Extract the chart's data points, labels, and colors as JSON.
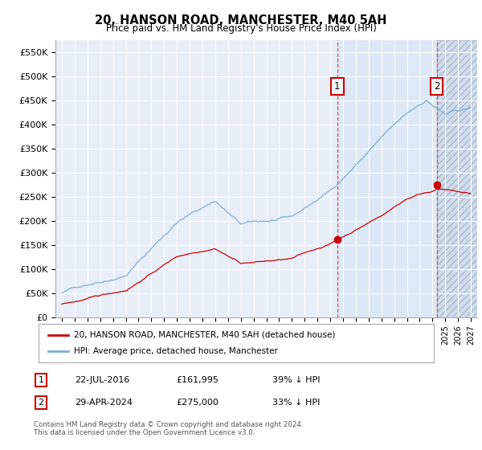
{
  "title": "20, HANSON ROAD, MANCHESTER, M40 5AH",
  "subtitle": "Price paid vs. HM Land Registry's House Price Index (HPI)",
  "hpi_color": "#7bafd4",
  "price_color": "#cc0000",
  "marker1_x": 2016.55,
  "marker2_x": 2024.33,
  "marker1_label": "1",
  "marker2_label": "2",
  "marker1_price": 161995,
  "marker2_price": 275000,
  "marker1_date": "22-JUL-2016",
  "marker2_date": "29-APR-2024",
  "marker1_hpi_pct": "39% ↓ HPI",
  "marker2_hpi_pct": "33% ↓ HPI",
  "legend_house": "20, HANSON ROAD, MANCHESTER, M40 5AH (detached house)",
  "legend_hpi": "HPI: Average price, detached house, Manchester",
  "footer1": "Contains HM Land Registry data © Crown copyright and database right 2024.",
  "footer2": "This data is licensed under the Open Government Licence v3.0.",
  "ylim_max": 575000,
  "ylim_min": 0,
  "xlim_min": 1994.5,
  "xlim_max": 2027.5,
  "chart_bg": "#e8eef8",
  "grid_color": "#ffffff",
  "highlight_bg": "#dce8f5",
  "hatch_bg": "#d0dcec"
}
